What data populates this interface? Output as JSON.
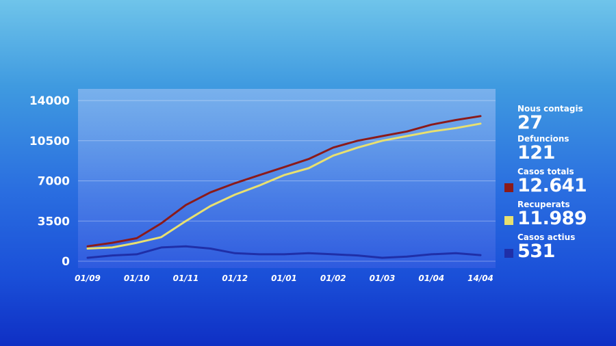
{
  "stats": [
    {
      "label": "Nous contagis",
      "value": "27",
      "color": ""
    },
    {
      "label": "Defuncions",
      "value": "121",
      "color": ""
    },
    {
      "label": "Casos totals",
      "value": "12.641",
      "color": "#8b1a1a"
    },
    {
      "label": "Recuperats",
      "value": "11.989",
      "color": "#e8e070"
    },
    {
      "label": "Casos actius",
      "value": "531",
      "color": "#1f2fa8"
    }
  ],
  "chart_data": {
    "type": "line",
    "x": [
      "01/09",
      "15/09",
      "01/10",
      "15/10",
      "01/11",
      "15/11",
      "01/12",
      "15/12",
      "01/01",
      "15/01",
      "01/02",
      "15/02",
      "01/03",
      "15/03",
      "01/04",
      "07/04",
      "14/04"
    ],
    "x_ticks": [
      "01/09",
      "01/10",
      "01/11",
      "01/12",
      "01/01",
      "01/02",
      "01/03",
      "01/04",
      "14/04"
    ],
    "y_ticks": [
      "0",
      "3500",
      "7000",
      "10500",
      "14000"
    ],
    "ylim": [
      0,
      14000
    ],
    "grid": true,
    "series": [
      {
        "key": "casos_totals",
        "color": "#8b1a1a",
        "values": [
          1300,
          1600,
          2000,
          3300,
          4900,
          6000,
          6800,
          7500,
          8200,
          8900,
          9900,
          10500,
          10900,
          11300,
          11900,
          12300,
          12641
        ]
      },
      {
        "key": "recuperats",
        "color": "#e8e070",
        "values": [
          1100,
          1200,
          1600,
          2100,
          3500,
          4800,
          5800,
          6600,
          7500,
          8100,
          9200,
          9900,
          10500,
          10900,
          11300,
          11600,
          11989
        ]
      },
      {
        "key": "casos_actius",
        "color": "#1f2fa8",
        "values": [
          300,
          500,
          600,
          1200,
          1300,
          1100,
          700,
          600,
          600,
          700,
          600,
          500,
          300,
          400,
          600,
          700,
          531
        ]
      }
    ]
  }
}
